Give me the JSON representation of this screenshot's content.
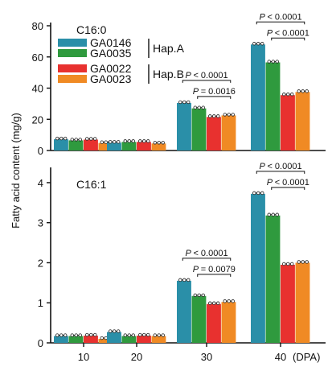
{
  "colors": {
    "GA0146": "#2a8fa8",
    "GA0035": "#2f9a3e",
    "GA0022": "#e8312f",
    "GA0023": "#f08a24"
  },
  "chart_data": {
    "type": "bar",
    "ylabel": "Fatty acid content (mg/g)",
    "categories": [
      "10",
      "20",
      "30",
      "40"
    ],
    "x_unit": "(DPA)",
    "legend": {
      "groups": [
        {
          "label": "Hap.A",
          "series": [
            "GA0146",
            "GA0035"
          ]
        },
        {
          "label": "Hap.B",
          "series": [
            "GA0022",
            "GA0023"
          ]
        }
      ]
    },
    "panels": [
      {
        "label": "C16:0",
        "ylim": [
          0,
          80
        ],
        "yticks": [
          "0",
          "20",
          "40",
          "60",
          "80"
        ],
        "series": [
          {
            "name": "GA0146",
            "values": [
              7.2,
              5.0,
              30.5,
              68.0
            ]
          },
          {
            "name": "GA0035",
            "values": [
              6.5,
              5.5,
              27.0,
              56.5
            ]
          },
          {
            "name": "GA0022",
            "values": [
              7.0,
              5.5,
              21.5,
              35.5
            ]
          },
          {
            "name": "GA0023",
            "values": [
              4.8,
              4.5,
              22.5,
              37.5
            ]
          }
        ],
        "annotations": [
          {
            "category": "30",
            "from": "GA0146",
            "to": "GA0023",
            "text": "< 0.0001"
          },
          {
            "category": "30",
            "from": "GA0035",
            "to": "GA0023",
            "text": "= 0.0016"
          },
          {
            "category": "40",
            "from": "GA0146",
            "to": "GA0023",
            "text": "< 0.0001"
          },
          {
            "category": "40",
            "from": "GA0035",
            "to": "GA0023",
            "text": "< 0.0001"
          }
        ]
      },
      {
        "label": "C16:1",
        "ylim": [
          0,
          4.3
        ],
        "yticks": [
          "0",
          "1",
          "2",
          "3",
          "4"
        ],
        "series": [
          {
            "name": "GA0146",
            "values": [
              0.17,
              0.27,
              1.55,
              3.72
            ]
          },
          {
            "name": "GA0035",
            "values": [
              0.17,
              0.17,
              1.17,
              3.18
            ]
          },
          {
            "name": "GA0022",
            "values": [
              0.18,
              0.18,
              0.97,
              1.95
            ]
          },
          {
            "name": "GA0023",
            "values": [
              0.1,
              0.17,
              1.02,
              2.0
            ]
          }
        ],
        "annotations": [
          {
            "category": "30",
            "from": "GA0146",
            "to": "GA0023",
            "text": "< 0.0001"
          },
          {
            "category": "30",
            "from": "GA0035",
            "to": "GA0023",
            "text": "= 0.0079"
          },
          {
            "category": "40",
            "from": "GA0146",
            "to": "GA0023",
            "text": "< 0.0001"
          },
          {
            "category": "40",
            "from": "GA0035",
            "to": "GA0023",
            "text": "< 0.0001"
          }
        ]
      }
    ]
  }
}
